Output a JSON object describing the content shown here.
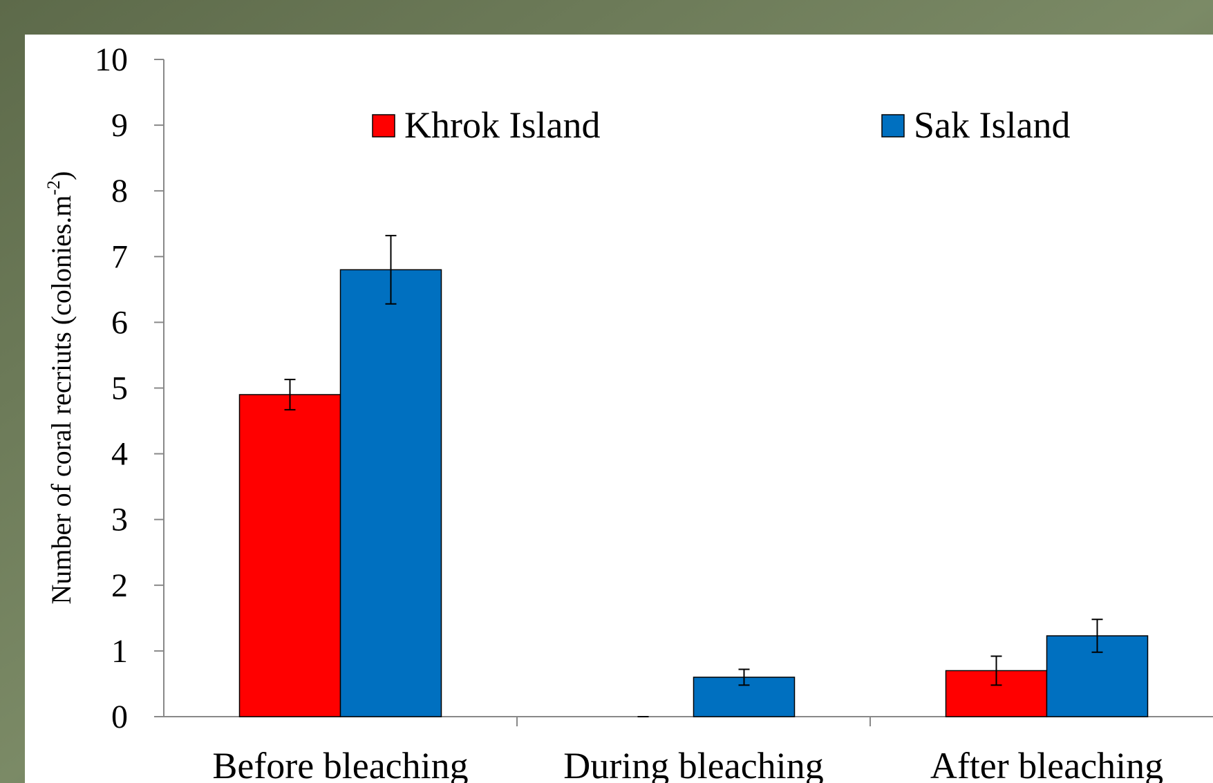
{
  "chart_data": {
    "type": "bar",
    "y_label": "Number of coral recriuts (colonies.m",
    "y_label_sup": "-2",
    "y_label_end": ")",
    "categories": [
      "Before bleaching",
      "During bleaching",
      "After bleaching"
    ],
    "series": [
      {
        "name": "Khrok Island",
        "color": "#ff0000",
        "values": [
          4.9,
          0,
          0.7
        ],
        "errors": [
          0.23,
          0,
          0.22
        ]
      },
      {
        "name": "Sak Island",
        "color": "#0070c0",
        "values": [
          6.8,
          0.6,
          1.23
        ],
        "errors": [
          0.52,
          0.12,
          0.25
        ]
      }
    ],
    "ylim": [
      0,
      10
    ],
    "yticks": [
      0,
      1,
      2,
      3,
      4,
      5,
      6,
      7,
      8,
      9,
      10
    ],
    "grid": false
  }
}
